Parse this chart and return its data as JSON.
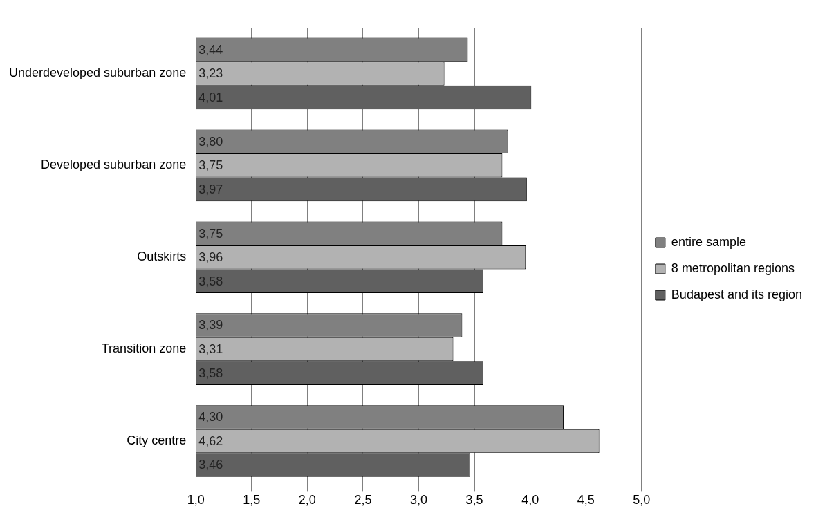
{
  "chart_data": {
    "type": "bar",
    "orientation": "horizontal",
    "categories": [
      "Underdeveloped suburban zone",
      "Developed suburban zone",
      "Outskirts",
      "Transition zone",
      "City centre"
    ],
    "series": [
      {
        "name": "entire sample",
        "color": "#808080",
        "values": [
          3.44,
          3.8,
          3.75,
          3.39,
          4.3
        ],
        "value_labels": [
          "3,44",
          "3,80",
          "3,75",
          "3,39",
          "4,30"
        ]
      },
      {
        "name": "8 metropolitan regions",
        "color": "#b2b2b2",
        "values": [
          3.23,
          3.75,
          3.96,
          3.31,
          4.62
        ],
        "value_labels": [
          "3,23",
          "3,75",
          "3,96",
          "3,31",
          "4,62"
        ]
      },
      {
        "name": "Budapest and its region",
        "color": "#606060",
        "values": [
          4.01,
          3.97,
          3.58,
          3.58,
          3.46
        ],
        "value_labels": [
          "4,01",
          "3,97",
          "3,58",
          "3,58",
          "3,46"
        ]
      }
    ],
    "xlim": [
      1,
      5
    ],
    "xticks": [
      {
        "value": 1,
        "label": "1,0"
      },
      {
        "value": 1.5,
        "label": "1,5"
      },
      {
        "value": 2,
        "label": "2,0"
      },
      {
        "value": 2.5,
        "label": "2,5"
      },
      {
        "value": 3,
        "label": "3,0"
      },
      {
        "value": 3.5,
        "label": "3,5"
      },
      {
        "value": 4,
        "label": "4,0"
      },
      {
        "value": 4.5,
        "label": "4,5"
      },
      {
        "value": 5,
        "label": "5,0"
      }
    ],
    "grid": "x",
    "legend": "right"
  }
}
